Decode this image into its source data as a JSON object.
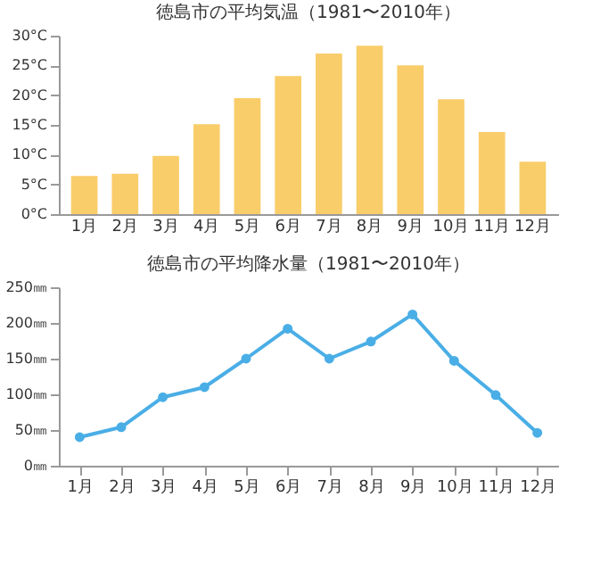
{
  "chart_data": [
    {
      "type": "bar",
      "title": "徳島市の平均気温（1981〜2010年）",
      "categories": [
        "1月",
        "2月",
        "3月",
        "4月",
        "5月",
        "6月",
        "7月",
        "8月",
        "9月",
        "10月",
        "11月",
        "12月"
      ],
      "values": [
        6.4,
        6.8,
        9.8,
        15.1,
        19.5,
        23.2,
        27.0,
        28.3,
        25.0,
        19.3,
        13.8,
        8.8
      ],
      "color": "#f9cd6a",
      "ylim": [
        0,
        30
      ],
      "yticks": [
        {
          "value": 0,
          "label": "0°C"
        },
        {
          "value": 5,
          "label": "5°C"
        },
        {
          "value": 10,
          "label": "10°C"
        },
        {
          "value": 15,
          "label": "15°C"
        },
        {
          "value": 20,
          "label": "20°C"
        },
        {
          "value": 25,
          "label": "25°C"
        },
        {
          "value": 30,
          "label": "30°C"
        }
      ],
      "grid": false
    },
    {
      "type": "line",
      "title": "徳島市の平均降水量（1981〜2010年）",
      "categories": [
        "1月",
        "2月",
        "3月",
        "4月",
        "5月",
        "6月",
        "7月",
        "8月",
        "9月",
        "10月",
        "11月",
        "12月"
      ],
      "values": [
        40,
        54,
        96,
        110,
        150,
        192,
        150,
        174,
        212,
        147,
        99,
        46
      ],
      "color": "#4aaee6",
      "marker": "circle",
      "ylim": [
        0,
        250
      ],
      "yticks": [
        {
          "value": 0,
          "label": "0㎜"
        },
        {
          "value": 50,
          "label": "50㎜"
        },
        {
          "value": 100,
          "label": "100㎜"
        },
        {
          "value": 150,
          "label": "150㎜"
        },
        {
          "value": 200,
          "label": "200㎜"
        },
        {
          "value": 250,
          "label": "250㎜"
        }
      ],
      "grid": false
    }
  ]
}
